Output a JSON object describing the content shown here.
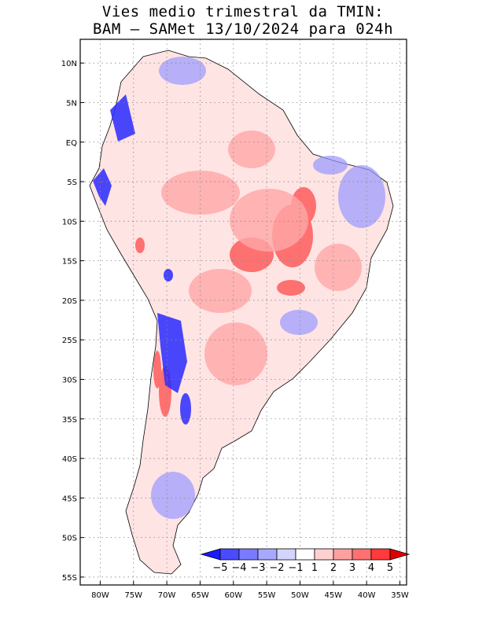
{
  "title_line1": "Vies medio trimestral da TMIN:",
  "title_line2": "BAM – SAMet 13/10/2024  para 024h",
  "lat_labels": [
    "10N",
    "5N",
    "EQ",
    "5S",
    "10S",
    "15S",
    "20S",
    "25S",
    "30S",
    "35S",
    "40S",
    "45S",
    "50S",
    "55S"
  ],
  "lat_values": [
    10,
    5,
    0,
    -5,
    -10,
    -15,
    -20,
    -25,
    -30,
    -35,
    -40,
    -45,
    -50,
    -55
  ],
  "lon_labels": [
    "80W",
    "75W",
    "70W",
    "65W",
    "60W",
    "55W",
    "50W",
    "45W",
    "40W",
    "35W"
  ],
  "lon_values": [
    -80,
    -75,
    -70,
    -65,
    -60,
    -55,
    -50,
    -45,
    -40,
    -35
  ],
  "map_extent": {
    "lon": [
      -83,
      -34
    ],
    "lat": [
      -56,
      13
    ]
  },
  "colorbar": {
    "labels": [
      "−5",
      "−4",
      "−3",
      "−2",
      "−1",
      "1",
      "2",
      "3",
      "4",
      "5"
    ],
    "colors": [
      "#1a1aff",
      "#4a4aff",
      "#7a7aff",
      "#a8a8ff",
      "#d4d4ff",
      "#ffffff",
      "#ffd0d0",
      "#ffa0a0",
      "#ff7070",
      "#ff3a3a",
      "#e00000"
    ]
  },
  "colors": {
    "land": "#ffe4e4",
    "warm": "#ff5050",
    "cold": "#2a2aff"
  }
}
